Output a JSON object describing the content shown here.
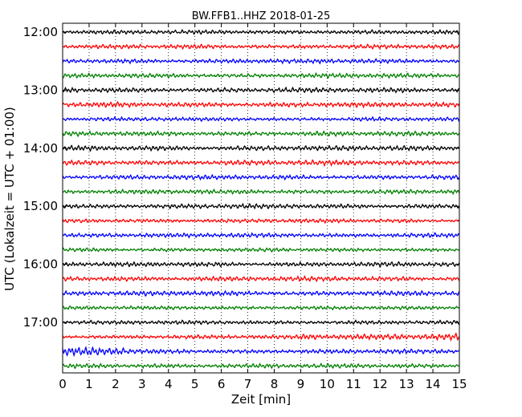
{
  "chart_data": {
    "type": "line",
    "title": "BW.FFB1..HHZ 2018-01-25",
    "xlabel": "Zeit  [min]",
    "ylabel": "UTC (Lokalzeit = UTC + 01:00)",
    "xlim": [
      0,
      15
    ],
    "x_ticks": [
      "0",
      "1",
      "2",
      "3",
      "4",
      "5",
      "6",
      "7",
      "8",
      "9",
      "10",
      "11",
      "12",
      "13",
      "14",
      "15"
    ],
    "y_ticks": [
      "12:00",
      "13:00",
      "14:00",
      "15:00",
      "16:00",
      "17:00"
    ],
    "x_grid": "dotted",
    "trace_minutes": 15,
    "traces_per_hour": 4,
    "trace_colors": [
      "#000000",
      "#ff0000",
      "#0000ff",
      "#008000"
    ],
    "traces": [
      {
        "start": "12:00",
        "color": "#000000"
      },
      {
        "start": "12:15",
        "color": "#ff0000"
      },
      {
        "start": "12:30",
        "color": "#0000ff"
      },
      {
        "start": "12:45",
        "color": "#008000"
      },
      {
        "start": "13:00",
        "color": "#000000"
      },
      {
        "start": "13:15",
        "color": "#ff0000"
      },
      {
        "start": "13:30",
        "color": "#0000ff"
      },
      {
        "start": "13:45",
        "color": "#008000"
      },
      {
        "start": "14:00",
        "color": "#000000"
      },
      {
        "start": "14:15",
        "color": "#ff0000"
      },
      {
        "start": "14:30",
        "color": "#0000ff"
      },
      {
        "start": "14:45",
        "color": "#008000"
      },
      {
        "start": "15:00",
        "color": "#000000"
      },
      {
        "start": "15:15",
        "color": "#ff0000"
      },
      {
        "start": "15:30",
        "color": "#0000ff"
      },
      {
        "start": "15:45",
        "color": "#008000"
      },
      {
        "start": "16:00",
        "color": "#000000"
      },
      {
        "start": "16:15",
        "color": "#ff0000"
      },
      {
        "start": "16:30",
        "color": "#0000ff"
      },
      {
        "start": "16:45",
        "color": "#008000"
      },
      {
        "start": "17:00",
        "color": "#000000"
      },
      {
        "start": "17:15",
        "color": "#ff0000"
      },
      {
        "start": "17:30",
        "color": "#0000ff"
      },
      {
        "start": "17:45",
        "color": "#008000"
      }
    ]
  }
}
